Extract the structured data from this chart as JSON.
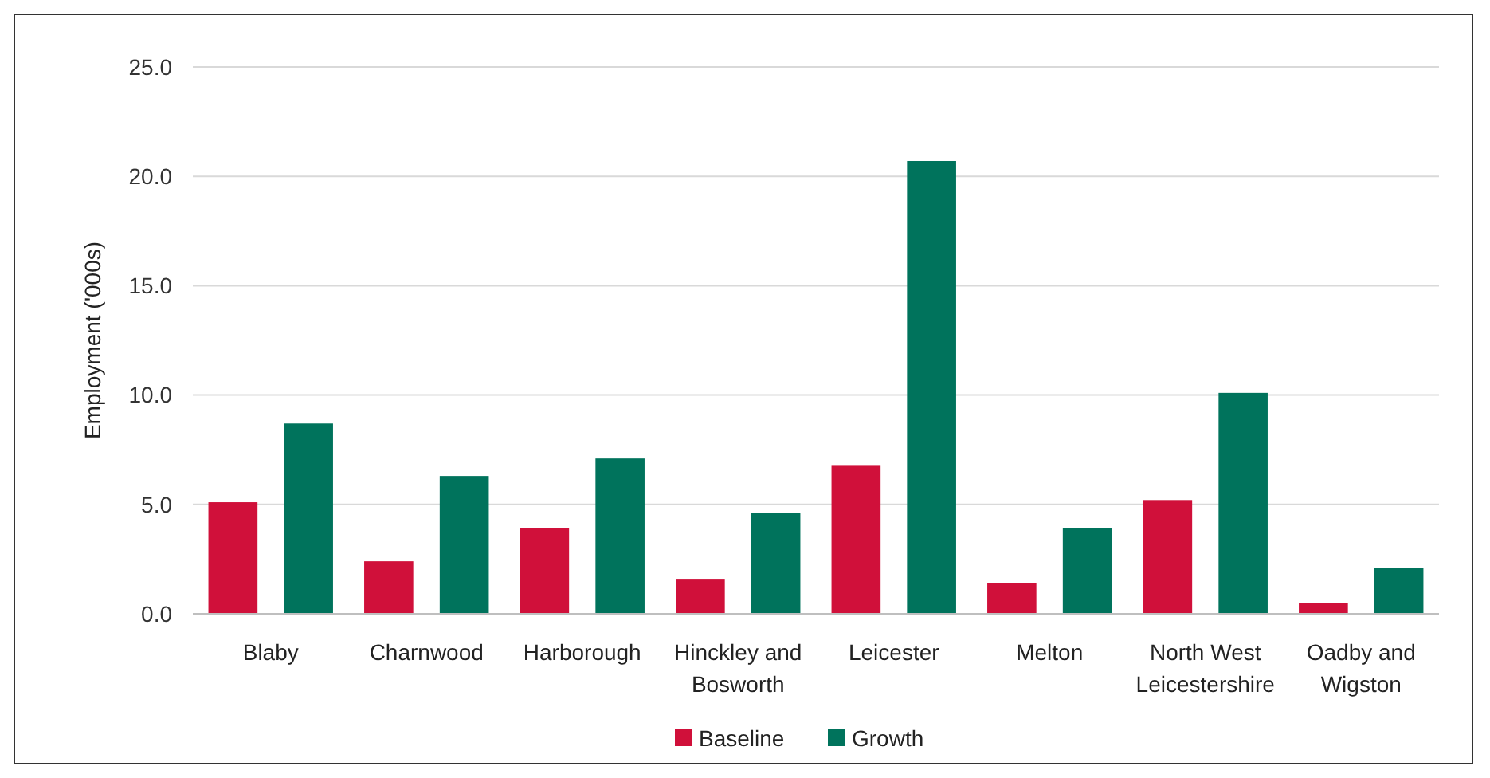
{
  "chart_data": {
    "type": "bar",
    "ylabel": "Employment ('000s)",
    "categories": [
      "Blaby",
      "Charnwood",
      "Harborough",
      "Hinckley and Bosworth",
      "Leicester",
      "Melton",
      "North West Leicestershire",
      "Oadby and Wigston"
    ],
    "series": [
      {
        "name": "Baseline",
        "color": "#d0103a",
        "values": [
          5.1,
          2.4,
          3.9,
          1.6,
          6.8,
          1.4,
          5.2,
          0.5
        ]
      },
      {
        "name": "Growth",
        "color": "#00735c",
        "values": [
          8.7,
          6.3,
          7.1,
          4.6,
          20.7,
          3.9,
          10.1,
          2.1
        ]
      }
    ],
    "ylim": [
      0,
      25
    ],
    "yticks": [
      {
        "value": 0,
        "label": "0.0"
      },
      {
        "value": 5,
        "label": "5.0"
      },
      {
        "value": 10,
        "label": "10.0"
      },
      {
        "value": 15,
        "label": "15.0"
      },
      {
        "value": 20,
        "label": "20.0"
      },
      {
        "value": 25,
        "label": "25.0"
      }
    ],
    "grid": "y",
    "legend": "bottom"
  }
}
